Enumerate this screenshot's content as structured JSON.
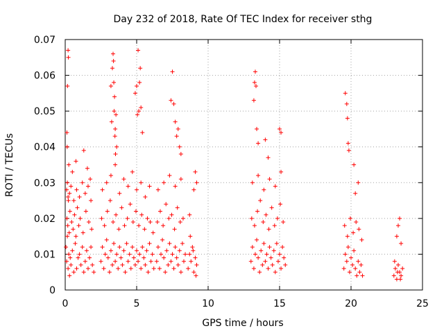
{
  "chart_data": {
    "type": "scatter",
    "title": "Day 232 of 2018, Rate Of TEC Index for receiver sthg",
    "xlabel": "GPS time / hours",
    "ylabel": "ROTI / TECUs",
    "xlim": [
      0,
      25
    ],
    "ylim": [
      0,
      0.07
    ],
    "xticks": [
      0,
      5,
      10,
      15,
      20,
      25
    ],
    "yticks": [
      0,
      0.01,
      0.02,
      0.03,
      0.04,
      0.05,
      0.06,
      0.07
    ],
    "xtick_labels": [
      "0",
      "5",
      "10",
      "15",
      "20",
      "25"
    ],
    "ytick_labels": [
      "0",
      "0.01",
      "0.02",
      "0.03",
      "0.04",
      "0.05",
      "0.06",
      "0.07"
    ],
    "grid": true,
    "marker": "+",
    "color": "#ff0000",
    "series": [
      {
        "name": "ROTI",
        "x": [
          0.05,
          0.1,
          0.15,
          0.2,
          0.25,
          0.3,
          0.35,
          0.4,
          0.5,
          0.6,
          0.7,
          0.8,
          0.9,
          1.0,
          1.1,
          1.2,
          1.3,
          1.4,
          1.5,
          1.6,
          1.7,
          1.8,
          1.9,
          2.0,
          0.12,
          0.18,
          0.22,
          0.28,
          0.33,
          0.45,
          0.55,
          0.65,
          0.75,
          0.85,
          0.95,
          1.05,
          1.25,
          1.45,
          1.65,
          1.85,
          0.1,
          0.15,
          0.2,
          0.3,
          0.4,
          0.6,
          0.8,
          1.0,
          1.2,
          1.4,
          1.6,
          1.8,
          0.12,
          0.14,
          0.16,
          0.2,
          0.22,
          0.25,
          0.5,
          0.75,
          1.3,
          1.55,
          1.75,
          2.5,
          2.6,
          2.7,
          2.8,
          2.9,
          3.0,
          3.1,
          3.2,
          3.3,
          3.4,
          3.5,
          3.6,
          3.7,
          3.8,
          3.9,
          4.0,
          4.1,
          4.2,
          4.3,
          4.4,
          4.5,
          4.6,
          4.7,
          4.8,
          4.9,
          5.0,
          5.1,
          5.2,
          5.3,
          5.4,
          5.5,
          5.6,
          5.7,
          5.8,
          5.9,
          6.0,
          6.1,
          6.2,
          2.55,
          2.75,
          2.95,
          3.15,
          3.35,
          3.55,
          3.75,
          3.95,
          4.15,
          4.35,
          4.55,
          4.75,
          4.95,
          5.15,
          5.35,
          5.55,
          5.75,
          5.95,
          6.15,
          2.6,
          2.9,
          3.2,
          3.5,
          3.8,
          4.1,
          4.4,
          4.7,
          5.0,
          5.3,
          5.6,
          5.9,
          3.2,
          3.3,
          3.35,
          3.4,
          3.45,
          3.5,
          3.55,
          3.6,
          3.25,
          3.38,
          3.42,
          3.48,
          3.52,
          4.9,
          5.0,
          5.1,
          5.2,
          5.3,
          5.4,
          5.25,
          5.05,
          5.15,
          6.4,
          6.5,
          6.6,
          6.7,
          6.8,
          6.9,
          7.0,
          7.1,
          7.2,
          7.3,
          7.4,
          7.5,
          7.6,
          7.7,
          7.8,
          7.9,
          8.0,
          8.1,
          8.2,
          8.3,
          8.4,
          6.45,
          6.65,
          6.85,
          7.05,
          7.25,
          7.45,
          7.65,
          7.85,
          8.05,
          8.25,
          6.5,
          6.9,
          7.3,
          7.7,
          8.1,
          7.4,
          7.5,
          7.6,
          7.7,
          7.8,
          7.9,
          8.0,
          8.1,
          8.6,
          8.7,
          8.8,
          8.9,
          9.0,
          9.1,
          9.2,
          8.75,
          8.95,
          9.15,
          8.7,
          9.0,
          9.1,
          9.2,
          13.0,
          13.1,
          13.2,
          13.3,
          13.4,
          13.5,
          13.6,
          13.7,
          13.8,
          13.9,
          14.0,
          14.1,
          14.2,
          14.3,
          14.4,
          14.5,
          14.6,
          14.7,
          14.8,
          14.9,
          15.0,
          15.1,
          15.2,
          15.3,
          15.4,
          13.05,
          13.25,
          13.45,
          13.65,
          13.85,
          14.05,
          14.25,
          14.45,
          14.65,
          14.85,
          15.05,
          15.25,
          13.1,
          13.5,
          13.9,
          14.3,
          14.7,
          15.1,
          13.2,
          13.25,
          13.3,
          13.35,
          13.4,
          13.5,
          14.0,
          14.2,
          15.0,
          15.1,
          19.5,
          19.6,
          19.7,
          19.8,
          19.9,
          20.0,
          20.1,
          20.2,
          20.3,
          20.4,
          20.5,
          20.6,
          20.7,
          20.8,
          19.55,
          19.75,
          19.95,
          20.15,
          20.35,
          20.55,
          20.75,
          19.6,
          19.7,
          19.75,
          19.8,
          19.85,
          20.2,
          20.3,
          20.5,
          23.0,
          23.1,
          23.2,
          23.3,
          23.4,
          23.5,
          23.6,
          23.05,
          23.25,
          23.45,
          23.2,
          23.3,
          23.4,
          23.5
        ],
        "y": [
          0.012,
          0.008,
          0.015,
          0.006,
          0.01,
          0.004,
          0.009,
          0.007,
          0.011,
          0.005,
          0.013,
          0.006,
          0.009,
          0.01,
          0.007,
          0.012,
          0.005,
          0.008,
          0.011,
          0.006,
          0.009,
          0.012,
          0.007,
          0.005,
          0.02,
          0.018,
          0.025,
          0.016,
          0.022,
          0.019,
          0.017,
          0.021,
          0.015,
          0.023,
          0.018,
          0.02,
          0.016,
          0.022,
          0.019,
          0.017,
          0.028,
          0.03,
          0.026,
          0.027,
          0.029,
          0.025,
          0.028,
          0.026,
          0.03,
          0.027,
          0.029,
          0.025,
          0.044,
          0.04,
          0.057,
          0.067,
          0.065,
          0.035,
          0.033,
          0.036,
          0.039,
          0.034,
          0.031,
          0.008,
          0.012,
          0.006,
          0.01,
          0.014,
          0.009,
          0.005,
          0.011,
          0.007,
          0.013,
          0.008,
          0.01,
          0.006,
          0.012,
          0.009,
          0.007,
          0.011,
          0.005,
          0.013,
          0.008,
          0.01,
          0.006,
          0.012,
          0.009,
          0.007,
          0.011,
          0.008,
          0.01,
          0.006,
          0.012,
          0.009,
          0.007,
          0.011,
          0.005,
          0.013,
          0.008,
          0.01,
          0.006,
          0.02,
          0.018,
          0.022,
          0.025,
          0.019,
          0.021,
          0.017,
          0.023,
          0.018,
          0.02,
          0.024,
          0.019,
          0.022,
          0.018,
          0.021,
          0.017,
          0.02,
          0.019,
          0.016,
          0.028,
          0.03,
          0.032,
          0.035,
          0.027,
          0.031,
          0.029,
          0.033,
          0.028,
          0.03,
          0.026,
          0.029,
          0.057,
          0.062,
          0.066,
          0.058,
          0.054,
          0.045,
          0.049,
          0.04,
          0.047,
          0.064,
          0.05,
          0.043,
          0.038,
          0.055,
          0.057,
          0.067,
          0.058,
          0.051,
          0.044,
          0.062,
          0.049,
          0.05,
          0.008,
          0.012,
          0.006,
          0.01,
          0.014,
          0.009,
          0.005,
          0.011,
          0.007,
          0.013,
          0.008,
          0.01,
          0.006,
          0.012,
          0.009,
          0.007,
          0.011,
          0.005,
          0.013,
          0.008,
          0.01,
          0.019,
          0.022,
          0.018,
          0.024,
          0.02,
          0.021,
          0.017,
          0.023,
          0.019,
          0.02,
          0.028,
          0.03,
          0.032,
          0.029,
          0.031,
          0.053,
          0.061,
          0.052,
          0.047,
          0.043,
          0.045,
          0.04,
          0.038,
          0.006,
          0.01,
          0.008,
          0.012,
          0.005,
          0.009,
          0.007,
          0.015,
          0.011,
          0.004,
          0.021,
          0.028,
          0.033,
          0.03,
          0.008,
          0.012,
          0.006,
          0.01,
          0.014,
          0.009,
          0.005,
          0.011,
          0.007,
          0.013,
          0.008,
          0.01,
          0.006,
          0.012,
          0.009,
          0.007,
          0.011,
          0.005,
          0.013,
          0.008,
          0.01,
          0.006,
          0.012,
          0.009,
          0.007,
          0.02,
          0.018,
          0.022,
          0.025,
          0.019,
          0.021,
          0.017,
          0.023,
          0.018,
          0.02,
          0.024,
          0.019,
          0.03,
          0.032,
          0.028,
          0.031,
          0.029,
          0.033,
          0.053,
          0.058,
          0.061,
          0.057,
          0.045,
          0.041,
          0.042,
          0.037,
          0.045,
          0.044,
          0.006,
          0.01,
          0.008,
          0.012,
          0.005,
          0.009,
          0.007,
          0.011,
          0.006,
          0.004,
          0.008,
          0.005,
          0.007,
          0.004,
          0.018,
          0.015,
          0.02,
          0.016,
          0.019,
          0.017,
          0.014,
          0.055,
          0.052,
          0.048,
          0.041,
          0.039,
          0.035,
          0.027,
          0.03,
          0.004,
          0.006,
          0.003,
          0.007,
          0.005,
          0.004,
          0.006,
          0.008,
          0.005,
          0.003,
          0.015,
          0.018,
          0.02,
          0.013
        ]
      }
    ]
  }
}
